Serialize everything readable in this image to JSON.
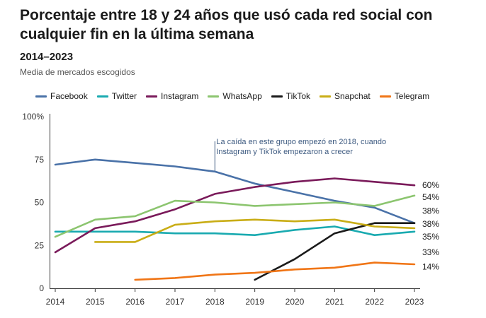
{
  "chart_data": {
    "type": "line",
    "title": "Porcentaje entre 18 y 24 años que usó cada red social con cualquier fin en la última semana",
    "subtitle": "2014–2023",
    "note": "Media de mercados escogidos",
    "x": [
      "2014",
      "2015",
      "2016",
      "2017",
      "2018",
      "2019",
      "2020",
      "2021",
      "2022",
      "2023"
    ],
    "ylim": [
      0,
      100
    ],
    "yticks": [
      0,
      25,
      50,
      75,
      100
    ],
    "ytick_labels": [
      "0",
      "25",
      "50",
      "75",
      "100%"
    ],
    "grid": false,
    "legend_position": "top",
    "series": [
      {
        "name": "Facebook",
        "color": "#4a72a8",
        "values": [
          72,
          75,
          73,
          71,
          68,
          61,
          56,
          51,
          47,
          38
        ]
      },
      {
        "name": "Twitter",
        "color": "#19aab0",
        "values": [
          33,
          33,
          33,
          32,
          32,
          31,
          34,
          36,
          31,
          33
        ]
      },
      {
        "name": "Instagram",
        "color": "#7a1a5a",
        "values": [
          21,
          35,
          39,
          46,
          55,
          59,
          62,
          64,
          62,
          60
        ]
      },
      {
        "name": "WhatsApp",
        "color": "#8cc56f",
        "values": [
          30,
          40,
          42,
          51,
          50,
          48,
          49,
          50,
          48,
          54
        ]
      },
      {
        "name": "TikTok",
        "color": "#1a1a1a",
        "values": [
          null,
          null,
          null,
          null,
          null,
          5,
          17,
          32,
          38,
          38
        ]
      },
      {
        "name": "Snapchat",
        "color": "#c9ad16",
        "values": [
          null,
          27,
          27,
          37,
          39,
          40,
          39,
          40,
          36,
          35
        ]
      },
      {
        "name": "Telegram",
        "color": "#f07516",
        "values": [
          null,
          null,
          5,
          6,
          8,
          9,
          11,
          12,
          15,
          14
        ]
      }
    ],
    "end_labels": [
      {
        "text": "60%",
        "y": 60
      },
      {
        "text": "54%",
        "y": 53
      },
      {
        "text": "38%",
        "y": 45
      },
      {
        "text": "38%",
        "y": 37.5
      },
      {
        "text": "35%",
        "y": 30
      },
      {
        "text": "33%",
        "y": 21
      },
      {
        "text": "14%",
        "y": 12.5
      }
    ],
    "annotation": {
      "lines": [
        "La caída en este grupo empezó en 2018, cuando",
        "Instagram y TikTok empezaron a crecer"
      ],
      "x": "2018"
    }
  }
}
